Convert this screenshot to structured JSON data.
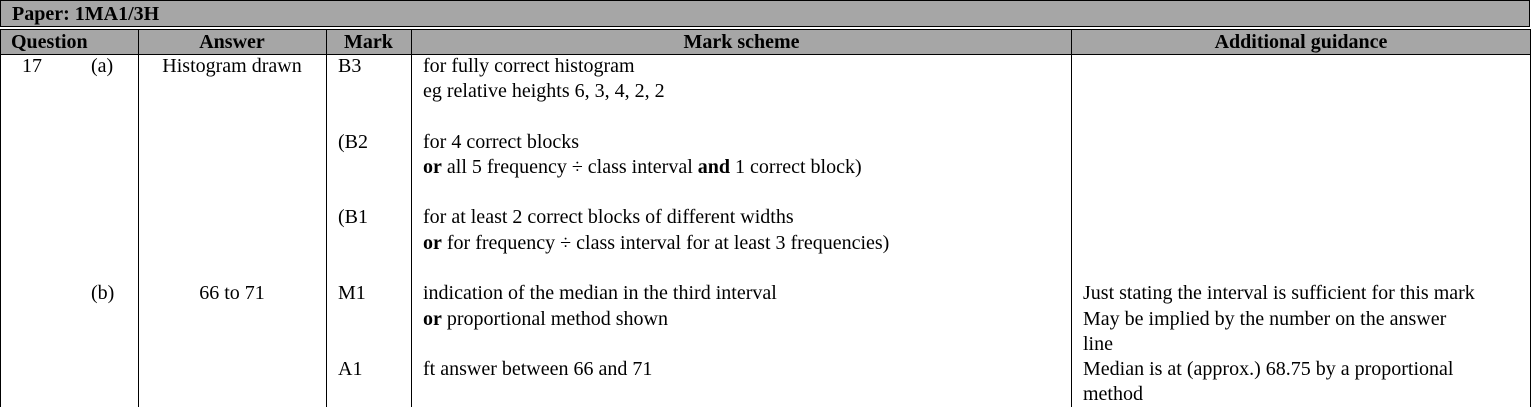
{
  "paper": {
    "label": "Paper: 1MA1/3H"
  },
  "headers": {
    "question": "Question",
    "answer": "Answer",
    "mark": "Mark",
    "mark_scheme": "Mark scheme",
    "guidance": "Additional guidance"
  },
  "q17": {
    "number": "17",
    "part_a": {
      "label": "(a)",
      "answer": "Histogram drawn",
      "b3": {
        "mark": "B3",
        "line1": "for fully correct histogram",
        "line2": "eg relative heights 6, 3, 4, 2, 2"
      },
      "b2": {
        "mark": "(B2",
        "line1": "for 4 correct blocks",
        "or": "or",
        "line2a": " all 5 frequency ÷ class interval ",
        "and": "and",
        "line2b": " 1 correct block)"
      },
      "b1": {
        "mark": "(B1",
        "line1": "for at least 2 correct blocks of different widths",
        "or": "or",
        "line2": " for frequency ÷ class interval for at least 3 frequencies)"
      }
    },
    "part_b": {
      "label": "(b)",
      "answer": "66 to 71",
      "m1": {
        "mark": "M1",
        "line1": "indication of the median in the third interval",
        "or": "or",
        "line2": " proportional method shown",
        "guidance1": "Just stating the interval is sufficient for this mark",
        "guidance2": "May be implied by the number on the answer",
        "guidance3": "line"
      },
      "a1": {
        "mark": "A1",
        "line1": "ft answer between 66 and 71",
        "guidance1": "Median is at (approx.) 68.75 by a proportional",
        "guidance2": "method"
      }
    }
  }
}
